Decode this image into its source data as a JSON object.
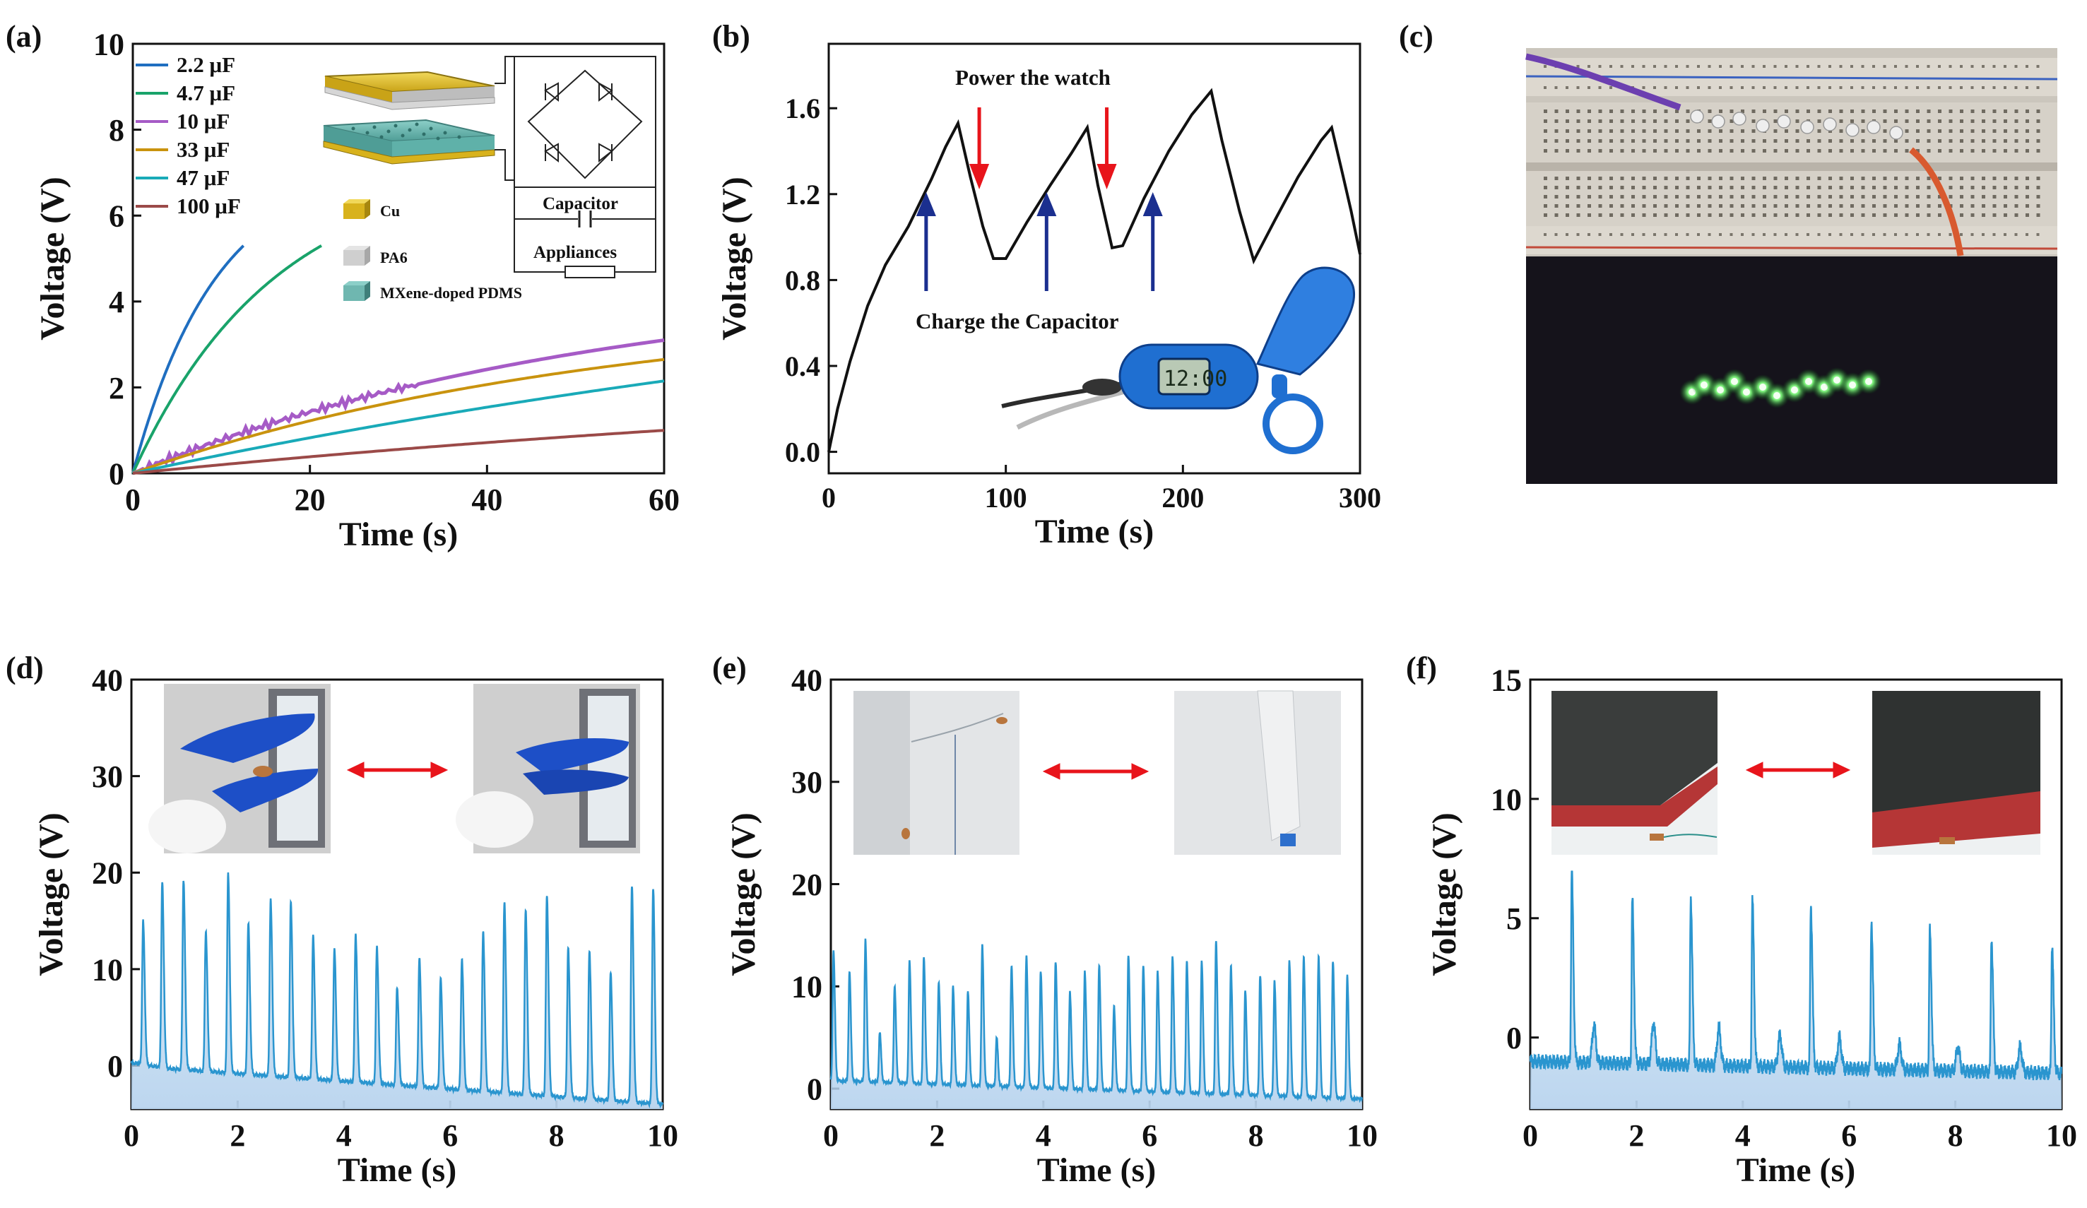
{
  "colors": {
    "axis": "#111111",
    "signal": "#2a95cf",
    "signal_fill": "#c9dff2",
    "arrow_red": "#e8141b",
    "arrow_blue": "#1b2f8f",
    "cu": "#e6c229",
    "pa6": "#cfcfcf",
    "mxene": "#6fb7b0",
    "watch_blue": "#1f6fd1"
  },
  "chart_data": [
    {
      "panel": "(a)",
      "type": "line",
      "xlabel": "Time (s)",
      "ylabel": "Voltage (V)",
      "xlim": [
        0,
        60
      ],
      "ylim": [
        0,
        10
      ],
      "xticks": [
        0,
        20,
        40,
        60
      ],
      "yticks": [
        0,
        2,
        4,
        6,
        8,
        10
      ],
      "legend_position": "top-left",
      "series": [
        {
          "name": "2.2 μF",
          "color": "#1f6ec0",
          "t_end": 12.5,
          "v_end": 5.3
        },
        {
          "name": "4.7 μF",
          "color": "#19a36a",
          "t_end": 21.3,
          "v_end": 5.3
        },
        {
          "name": "10 μF",
          "color": "#a65bc6",
          "t_end": 60,
          "v_end": 3.1
        },
        {
          "name": "33 μF",
          "color": "#c9930e",
          "t_end": 60,
          "v_end": 2.65
        },
        {
          "name": "47 μF",
          "color": "#19aab8",
          "t_end": 60,
          "v_end": 2.15
        },
        {
          "name": "100 μF",
          "color": "#9b4a48",
          "t_end": 60,
          "v_end": 1.0
        }
      ],
      "inset_legend": [
        "Cu",
        "PA6",
        "MXene-doped PDMS"
      ],
      "circuit_labels": [
        "Capacitor",
        "Appliances"
      ]
    },
    {
      "panel": "(b)",
      "type": "line",
      "xlabel": "Time (s)",
      "ylabel": "Voltage (V)",
      "xlim": [
        0,
        300
      ],
      "ylim": [
        -0.1,
        1.9
      ],
      "xticks": [
        0,
        100,
        200,
        300
      ],
      "yticks": [
        0.0,
        0.4,
        0.8,
        1.2,
        1.6
      ],
      "ytick_labels": [
        "0.0",
        "0.4",
        "0.8",
        "1.2",
        "1.6"
      ],
      "points": [
        [
          0,
          0
        ],
        [
          5,
          0.2
        ],
        [
          12,
          0.42
        ],
        [
          22,
          0.68
        ],
        [
          32,
          0.87
        ],
        [
          45,
          1.05
        ],
        [
          58,
          1.27
        ],
        [
          66,
          1.42
        ],
        [
          73,
          1.53
        ],
        [
          80,
          1.28
        ],
        [
          87,
          1.05
        ],
        [
          93,
          0.9
        ],
        [
          100,
          0.9
        ],
        [
          112,
          1.07
        ],
        [
          125,
          1.24
        ],
        [
          137,
          1.39
        ],
        [
          146,
          1.51
        ],
        [
          152,
          1.24
        ],
        [
          160,
          0.95
        ],
        [
          166,
          0.96
        ],
        [
          178,
          1.18
        ],
        [
          192,
          1.4
        ],
        [
          205,
          1.57
        ],
        [
          216,
          1.68
        ],
        [
          222,
          1.45
        ],
        [
          232,
          1.12
        ],
        [
          240,
          0.89
        ],
        [
          252,
          1.08
        ],
        [
          265,
          1.28
        ],
        [
          278,
          1.45
        ],
        [
          284,
          1.51
        ],
        [
          290,
          1.3
        ],
        [
          295,
          1.12
        ],
        [
          300,
          0.92
        ]
      ],
      "annotations": {
        "top": "Power the watch",
        "bottom": "Charge the Capacitor"
      },
      "red_arrows_t": [
        85,
        157
      ],
      "blue_arrows_t": [
        55,
        123,
        183
      ]
    },
    {
      "panel": "(d)",
      "type": "line",
      "xlabel": "Time (s)",
      "ylabel": "Voltage (V)",
      "xlim": [
        0,
        10
      ],
      "ylim": [
        -4.5,
        40
      ],
      "xticks": [
        0,
        2,
        4,
        6,
        8,
        10
      ],
      "yticks": [
        0,
        10,
        20,
        30,
        40
      ],
      "baseline": [
        [
          0,
          0.3
        ],
        [
          0.7,
          -0.3
        ],
        [
          10,
          -4
        ]
      ],
      "peak_t": [
        0.22,
        0.58,
        0.98,
        1.4,
        1.82,
        2.2,
        2.62,
        3.0,
        3.42,
        3.82,
        4.22,
        4.62,
        5.0,
        5.42,
        5.82,
        6.22,
        6.62,
        7.02,
        7.42,
        7.82,
        8.22,
        8.62,
        9.02,
        9.42,
        9.82
      ],
      "peak_v": [
        15,
        19,
        19.3,
        14,
        20,
        14.7,
        17.2,
        17,
        13.4,
        12.1,
        13.7,
        12.3,
        8.2,
        11.2,
        9,
        11.1,
        14,
        16.9,
        16.2,
        17.7,
        12.2,
        12,
        9.7,
        18.6,
        18.5
      ]
    },
    {
      "panel": "(e)",
      "type": "line",
      "xlabel": "Time (s)",
      "ylabel": "Voltage (V)",
      "xlim": [
        0,
        10
      ],
      "ylim": [
        -2,
        40
      ],
      "xticks": [
        0,
        2,
        4,
        6,
        8,
        10
      ],
      "yticks": [
        0,
        10,
        20,
        30,
        40
      ],
      "baseline": [
        [
          0,
          0.8
        ],
        [
          10,
          -1
        ]
      ],
      "peak_t": [
        0.05,
        0.35,
        0.65,
        0.92,
        1.2,
        1.48,
        1.75,
        2.03,
        2.3,
        2.58,
        2.85,
        3.12,
        3.4,
        3.68,
        3.95,
        4.23,
        4.5,
        4.78,
        5.05,
        5.33,
        5.6,
        5.88,
        6.15,
        6.43,
        6.7,
        6.98,
        7.25,
        7.53,
        7.8,
        8.08,
        8.35,
        8.63,
        8.9,
        9.18,
        9.45,
        9.72
      ],
      "peak_v": [
        13.5,
        11.5,
        14.5,
        5.5,
        10,
        12.5,
        13,
        10.5,
        10,
        9.5,
        14,
        5,
        12,
        13,
        11.5,
        12.5,
        9.5,
        11.5,
        12,
        8,
        13,
        12,
        11.5,
        13,
        12.5,
        12.5,
        14.5,
        12,
        9.5,
        11,
        10.5,
        12.5,
        13,
        13,
        12.5,
        11
      ]
    },
    {
      "panel": "(f)",
      "type": "line",
      "xlabel": "Time (s)",
      "ylabel": "Voltage (V)",
      "xlim": [
        0,
        10
      ],
      "ylim": [
        -3,
        15
      ],
      "xticks": [
        0,
        2,
        4,
        6,
        8,
        10
      ],
      "yticks": [
        0,
        5,
        10,
        15
      ],
      "baseline": [
        [
          0,
          -1
        ],
        [
          10,
          -1.5
        ]
      ],
      "peak_t": [
        0.78,
        1.92,
        3.02,
        4.18,
        5.28,
        6.42,
        7.52,
        8.68,
        9.82
      ],
      "peak_v": [
        7.0,
        5.8,
        5.9,
        5.8,
        5.6,
        4.9,
        4.5,
        4.2,
        3.9
      ],
      "mini_peak_t": [
        1.2,
        2.32,
        3.55,
        4.7,
        5.82,
        6.95,
        8.05,
        9.22
      ],
      "mini_peak_v": [
        0.5,
        0.6,
        0.4,
        0.1,
        0.0,
        -0.3,
        -0.4,
        -0.4
      ]
    }
  ],
  "panel_c": {
    "label": "(c)"
  }
}
